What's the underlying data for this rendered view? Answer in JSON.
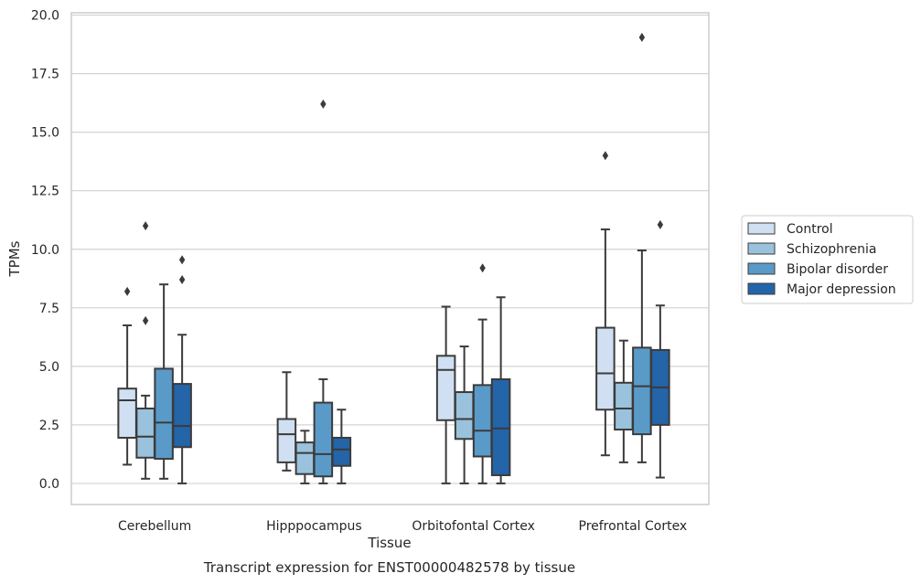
{
  "chart_data": {
    "type": "box",
    "caption": "Transcript expression for ENST00000482578 by tissue",
    "xlabel": "Tissue",
    "ylabel": "TPMs",
    "ylim": [
      -0.9,
      20.1
    ],
    "yticks": [
      "0.0",
      "2.5",
      "5.0",
      "7.5",
      "10.0",
      "12.5",
      "15.0",
      "17.5",
      "20.0"
    ],
    "grid": "horizontal",
    "legend_position": "right",
    "categories": [
      "Cerebellum",
      "Hipppocampus",
      "Orbitofontal Cortex",
      "Prefrontal Cortex"
    ],
    "series": [
      {
        "name": "Control",
        "color": "#d0e0f2",
        "boxes": [
          {
            "whisker_low": 0.8,
            "q1": 1.95,
            "median": 3.55,
            "q3": 4.05,
            "whisker_high": 6.75,
            "outliers": [
              8.2
            ]
          },
          {
            "whisker_low": 0.55,
            "q1": 0.9,
            "median": 2.1,
            "q3": 2.75,
            "whisker_high": 4.75,
            "outliers": []
          },
          {
            "whisker_low": 0.0,
            "q1": 2.7,
            "median": 4.85,
            "q3": 5.45,
            "whisker_high": 7.55,
            "outliers": []
          },
          {
            "whisker_low": 1.2,
            "q1": 3.15,
            "median": 4.7,
            "q3": 6.65,
            "whisker_high": 10.85,
            "outliers": [
              14.0
            ]
          }
        ]
      },
      {
        "name": "Schizophrenia",
        "color": "#9ac2dd",
        "boxes": [
          {
            "whisker_low": 0.2,
            "q1": 1.1,
            "median": 2.0,
            "q3": 3.2,
            "whisker_high": 3.75,
            "outliers": [
              6.95,
              11.0
            ]
          },
          {
            "whisker_low": 0.0,
            "q1": 0.4,
            "median": 1.3,
            "q3": 1.75,
            "whisker_high": 2.25,
            "outliers": []
          },
          {
            "whisker_low": 0.0,
            "q1": 1.9,
            "median": 2.75,
            "q3": 3.9,
            "whisker_high": 5.85,
            "outliers": []
          },
          {
            "whisker_low": 0.9,
            "q1": 2.3,
            "median": 3.2,
            "q3": 4.3,
            "whisker_high": 6.1,
            "outliers": []
          }
        ]
      },
      {
        "name": "Bipolar disorder",
        "color": "#5a9ac9",
        "boxes": [
          {
            "whisker_low": 0.2,
            "q1": 1.05,
            "median": 2.6,
            "q3": 4.9,
            "whisker_high": 8.5,
            "outliers": []
          },
          {
            "whisker_low": 0.0,
            "q1": 0.3,
            "median": 1.25,
            "q3": 3.45,
            "whisker_high": 4.45,
            "outliers": [
              16.2
            ]
          },
          {
            "whisker_low": 0.0,
            "q1": 1.15,
            "median": 2.25,
            "q3": 4.2,
            "whisker_high": 7.0,
            "outliers": [
              9.2
            ]
          },
          {
            "whisker_low": 0.9,
            "q1": 2.1,
            "median": 4.15,
            "q3": 5.8,
            "whisker_high": 9.95,
            "outliers": [
              19.05
            ]
          }
        ]
      },
      {
        "name": "Major depression",
        "color": "#2464a8",
        "boxes": [
          {
            "whisker_low": 0.0,
            "q1": 1.55,
            "median": 2.45,
            "q3": 4.25,
            "whisker_high": 6.35,
            "outliers": [
              8.7,
              9.55
            ]
          },
          {
            "whisker_low": 0.0,
            "q1": 0.75,
            "median": 1.45,
            "q3": 1.95,
            "whisker_high": 3.15,
            "outliers": []
          },
          {
            "whisker_low": 0.0,
            "q1": 0.35,
            "median": 2.35,
            "q3": 4.45,
            "whisker_high": 7.95,
            "outliers": []
          },
          {
            "whisker_low": 0.25,
            "q1": 2.5,
            "median": 4.1,
            "q3": 5.7,
            "whisker_high": 7.6,
            "outliers": [
              11.05
            ]
          }
        ]
      }
    ]
  }
}
